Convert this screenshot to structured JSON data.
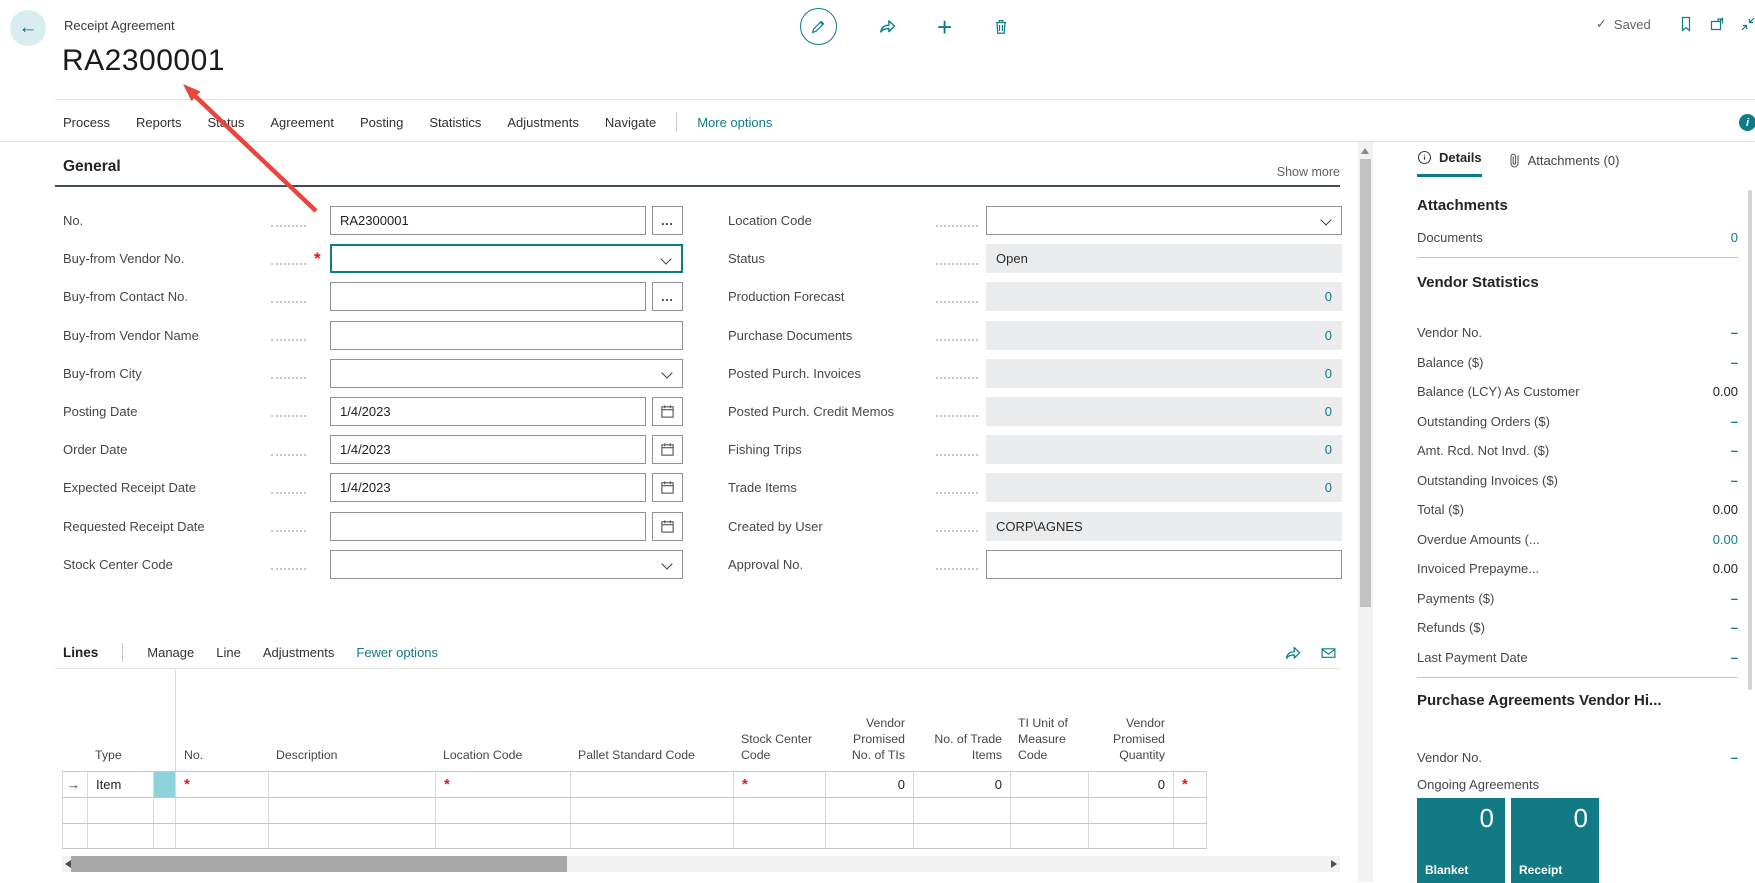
{
  "topbar": {
    "caption": "Receipt Agreement",
    "saved": "Saved",
    "actions": [
      "edit",
      "share",
      "add-new",
      "delete"
    ],
    "right_icons": [
      "bookmark",
      "open-in-new-window",
      "collapse"
    ]
  },
  "page": {
    "title": "RA2300001"
  },
  "menu": {
    "items": [
      "Process",
      "Reports",
      "Status",
      "Agreement",
      "Posting",
      "Statistics",
      "Adjustments",
      "Navigate"
    ],
    "more_options": "More options"
  },
  "general": {
    "heading": "General",
    "show_more": "Show more",
    "left_fields": [
      {
        "label": "No.",
        "value": "RA2300001",
        "control": "lookup",
        "required": false
      },
      {
        "label": "Buy-from Vendor No.",
        "value": "",
        "control": "combo",
        "required": true,
        "focused": true
      },
      {
        "label": "Buy-from Contact No.",
        "value": "",
        "control": "lookup",
        "required": false
      },
      {
        "label": "Buy-from Vendor Name",
        "value": "",
        "control": "text",
        "required": false
      },
      {
        "label": "Buy-from City",
        "value": "",
        "control": "combo",
        "required": false
      },
      {
        "label": "Posting Date",
        "value": "1/4/2023",
        "control": "date",
        "required": false
      },
      {
        "label": "Order Date",
        "value": "1/4/2023",
        "control": "date",
        "required": false
      },
      {
        "label": "Expected Receipt Date",
        "value": "1/4/2023",
        "control": "date",
        "required": false
      },
      {
        "label": "Requested Receipt Date",
        "value": "",
        "control": "date",
        "required": false
      },
      {
        "label": "Stock Center Code",
        "value": "",
        "control": "combo",
        "required": false
      }
    ],
    "right_fields": [
      {
        "label": "Location Code",
        "value": "",
        "control": "combo"
      },
      {
        "label": "Status",
        "value": "Open",
        "control": "disabled-text"
      },
      {
        "label": "Production Forecast",
        "value": "0",
        "control": "disabled-num"
      },
      {
        "label": "Purchase Documents",
        "value": "0",
        "control": "disabled-num"
      },
      {
        "label": "Posted Purch. Invoices",
        "value": "0",
        "control": "disabled-num"
      },
      {
        "label": "Posted Purch. Credit Memos",
        "value": "0",
        "control": "disabled-num"
      },
      {
        "label": "Fishing Trips",
        "value": "0",
        "control": "disabled-num"
      },
      {
        "label": "Trade Items",
        "value": "0",
        "control": "disabled-num"
      },
      {
        "label": "Created by User",
        "value": "CORP\\AGNES",
        "control": "disabled-text"
      },
      {
        "label": "Approval No.",
        "value": "",
        "control": "text"
      }
    ]
  },
  "lines": {
    "tab": "Lines",
    "menu": [
      "Manage",
      "Line",
      "Adjustments"
    ],
    "fewer_options": "Fewer options",
    "columns": [
      "",
      "Type",
      "",
      "No.",
      "Description",
      "Location Code",
      "Pallet Standard Code",
      "Stock Center Code",
      "Vendor Promised No. of TIs",
      "No. of Trade Items",
      "TI Unit of Measure Code",
      "Vendor Promised Quantity",
      ""
    ],
    "right_aligned_columns": [
      8,
      9,
      11
    ],
    "rows": [
      {
        "type": "Item",
        "no": "*",
        "description": "",
        "location": "*",
        "pallet": "",
        "stock": "*",
        "vpnt": "0",
        "noti": "0",
        "tiuom": "",
        "vpq": "0",
        "trailing": "*",
        "selected": true
      },
      {},
      {}
    ]
  },
  "factbox": {
    "tabs": [
      {
        "label": "Details",
        "active": true
      },
      {
        "label": "Attachments (0)",
        "active": false
      }
    ],
    "attachments": {
      "heading": "Attachments",
      "rows": [
        {
          "label": "Documents",
          "value": "0",
          "style": "link"
        }
      ]
    },
    "vendor_statistics": {
      "heading": "Vendor Statistics",
      "rows": [
        {
          "label": "Vendor No.",
          "value": "–",
          "style": "dash"
        },
        {
          "label": "Balance ($)",
          "value": "–",
          "style": "dash"
        },
        {
          "label": "Balance (LCY) As Customer",
          "value": "0.00",
          "style": "plain"
        },
        {
          "label": "Outstanding Orders ($)",
          "value": "–",
          "style": "dash"
        },
        {
          "label": "Amt. Rcd. Not Invd. ($)",
          "value": "–",
          "style": "dash"
        },
        {
          "label": "Outstanding Invoices ($)",
          "value": "–",
          "style": "dash"
        },
        {
          "label": "Total ($)",
          "value": "0.00",
          "style": "plain"
        },
        {
          "label": "Overdue Amounts (...",
          "value": "0.00",
          "style": "link"
        },
        {
          "label": "Invoiced Prepayme...",
          "value": "0.00",
          "style": "plain"
        },
        {
          "label": "Payments ($)",
          "value": "–",
          "style": "dash"
        },
        {
          "label": "Refunds ($)",
          "value": "–",
          "style": "dash"
        },
        {
          "label": "Last Payment Date",
          "value": "–",
          "style": "dash"
        }
      ]
    },
    "purchase_agreements": {
      "heading": "Purchase Agreements Vendor Hi...",
      "rows": [
        {
          "label": "Vendor No.",
          "value": "–",
          "style": "dash"
        }
      ],
      "ongoing_label": "Ongoing Agreements",
      "tiles": [
        {
          "value": "0",
          "label": "Blanket"
        },
        {
          "value": "0",
          "label": "Receipt"
        }
      ]
    }
  },
  "colors": {
    "accent": "#0e7c87",
    "tile": "#117a85",
    "required": "#e81123",
    "annotation_arrow": "#e8453c",
    "disabled_bg": "#ebeced",
    "selected_cell": "#8ed2da"
  }
}
